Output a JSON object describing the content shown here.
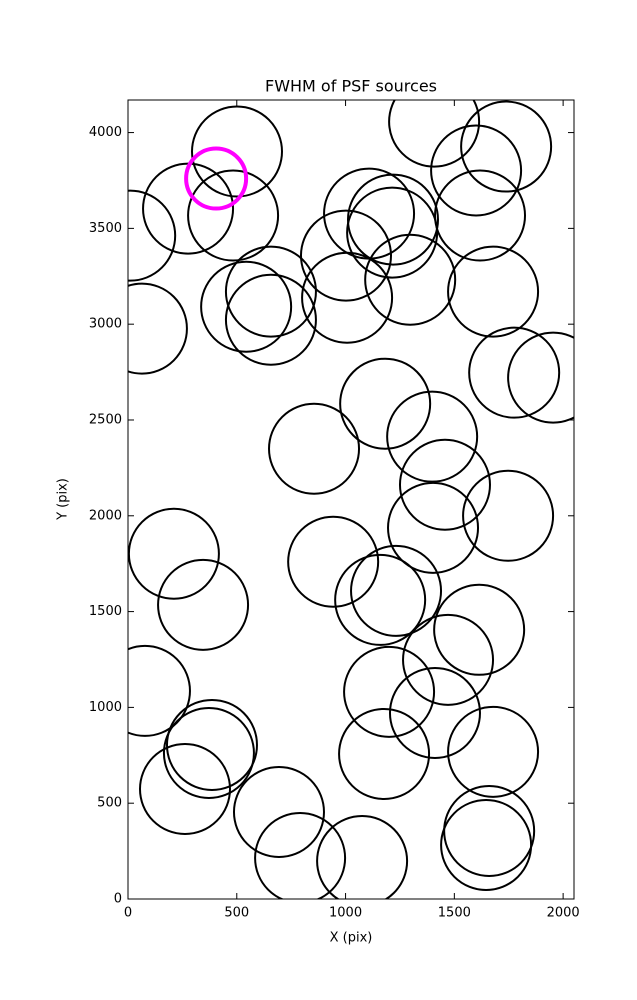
{
  "chart_data": {
    "type": "scatter",
    "title": "FWHM of PSF sources",
    "xlabel": "X (pix)",
    "ylabel": "Y (pix)",
    "xlim": [
      0,
      2050
    ],
    "ylim": [
      0,
      4170
    ],
    "xticks": [
      0,
      500,
      1000,
      1500,
      2000
    ],
    "yticks": [
      0,
      500,
      1000,
      1500,
      2000,
      2500,
      3000,
      3500,
      4000
    ],
    "series": [
      {
        "color": "#000000",
        "x": [
          10,
          276,
          501,
          483,
          64,
          543,
          657,
          657,
          1007,
          1002,
          1108,
          1218,
          1214,
          1297,
          1407,
          1600,
          1738,
          1618,
          1678,
          1775,
          1954,
          1182,
          1398,
          1457,
          1402,
          1747,
          855,
          211,
          345,
          943,
          1159,
          1232,
          1614,
          1471,
          1200,
          1411,
          1177,
          1678,
          78,
          386,
          372,
          262,
          694,
          791,
          1076,
          1660,
          1646
        ],
        "y": [
          3462,
          3603,
          3901,
          3567,
          2977,
          3091,
          3170,
          3023,
          3138,
          3358,
          3577,
          3546,
          3478,
          3232,
          4057,
          3802,
          3927,
          3567,
          3170,
          2747,
          2721,
          2585,
          2413,
          2162,
          1937,
          2000,
          2350,
          1802,
          1535,
          1760,
          1561,
          1608,
          1405,
          1248,
          1081,
          971,
          757,
          768,
          1086,
          804,
          762,
          574,
          454,
          214,
          198,
          355,
          282
        ]
      },
      {
        "color": "#ff00ff",
        "x": [
          405
        ],
        "y": [
          3760
        ]
      }
    ]
  }
}
